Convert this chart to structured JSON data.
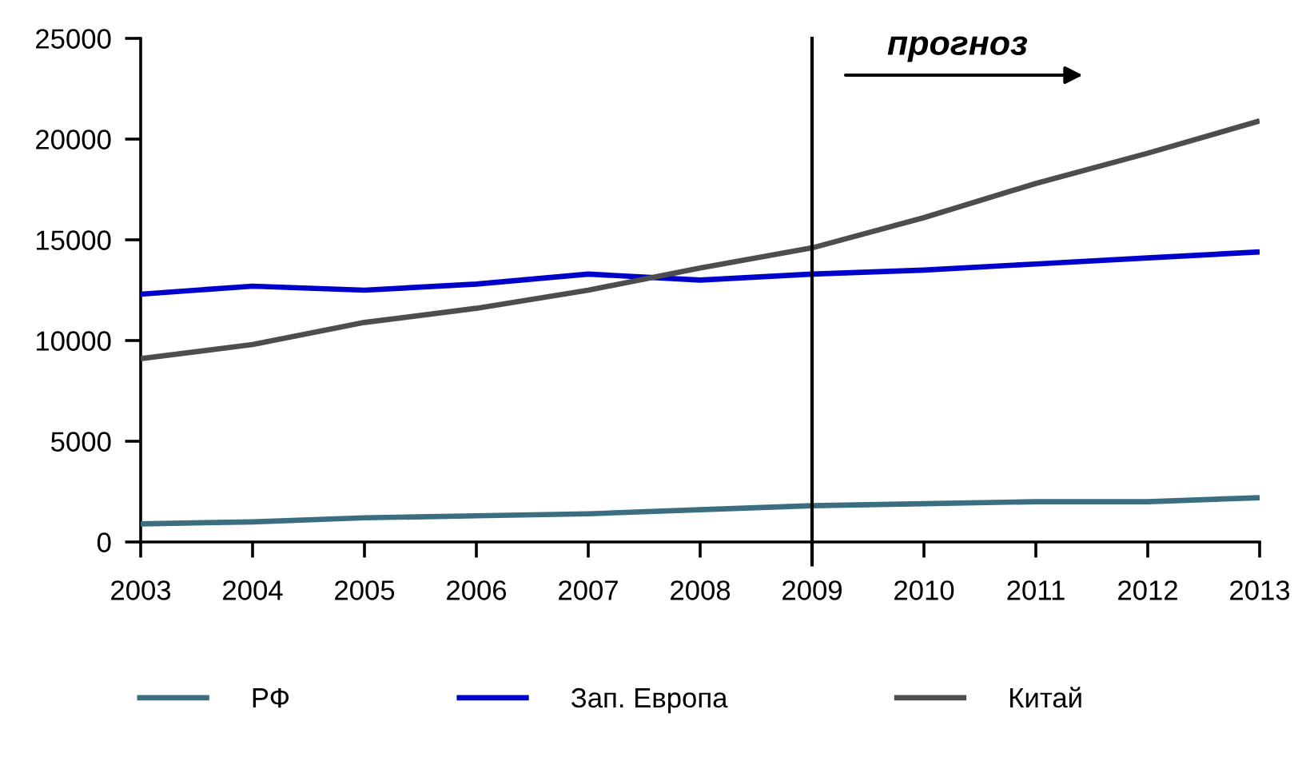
{
  "chart_data": {
    "type": "line",
    "categories": [
      "2003",
      "2004",
      "2005",
      "2006",
      "2007",
      "2008",
      "2009",
      "2010",
      "2011",
      "2012",
      "2013"
    ],
    "series": [
      {
        "name": "РФ",
        "color": "#3a6e80",
        "values": [
          900,
          1000,
          1200,
          1300,
          1400,
          1600,
          1800,
          1900,
          2000,
          2000,
          2200
        ]
      },
      {
        "name": "Зап. Европа",
        "color": "#0000cc",
        "values": [
          12300,
          12700,
          12500,
          12800,
          13300,
          13000,
          13300,
          13500,
          13800,
          14100,
          14400
        ]
      },
      {
        "name": "Китай",
        "color": "#4d4d4d",
        "values": [
          9100,
          9800,
          10900,
          11600,
          12500,
          13600,
          14600,
          16100,
          17800,
          19300,
          20900
        ]
      }
    ],
    "ylim": [
      0,
      25000
    ],
    "yticks": [
      0,
      5000,
      10000,
      15000,
      20000,
      25000
    ],
    "ref_lines": [
      {
        "axis": "x",
        "value": "2009",
        "color": "#000000"
      }
    ],
    "annotations": [
      "прогноз"
    ],
    "legend": "bottom",
    "grid": false,
    "marker": "none",
    "line_style": "solid"
  }
}
